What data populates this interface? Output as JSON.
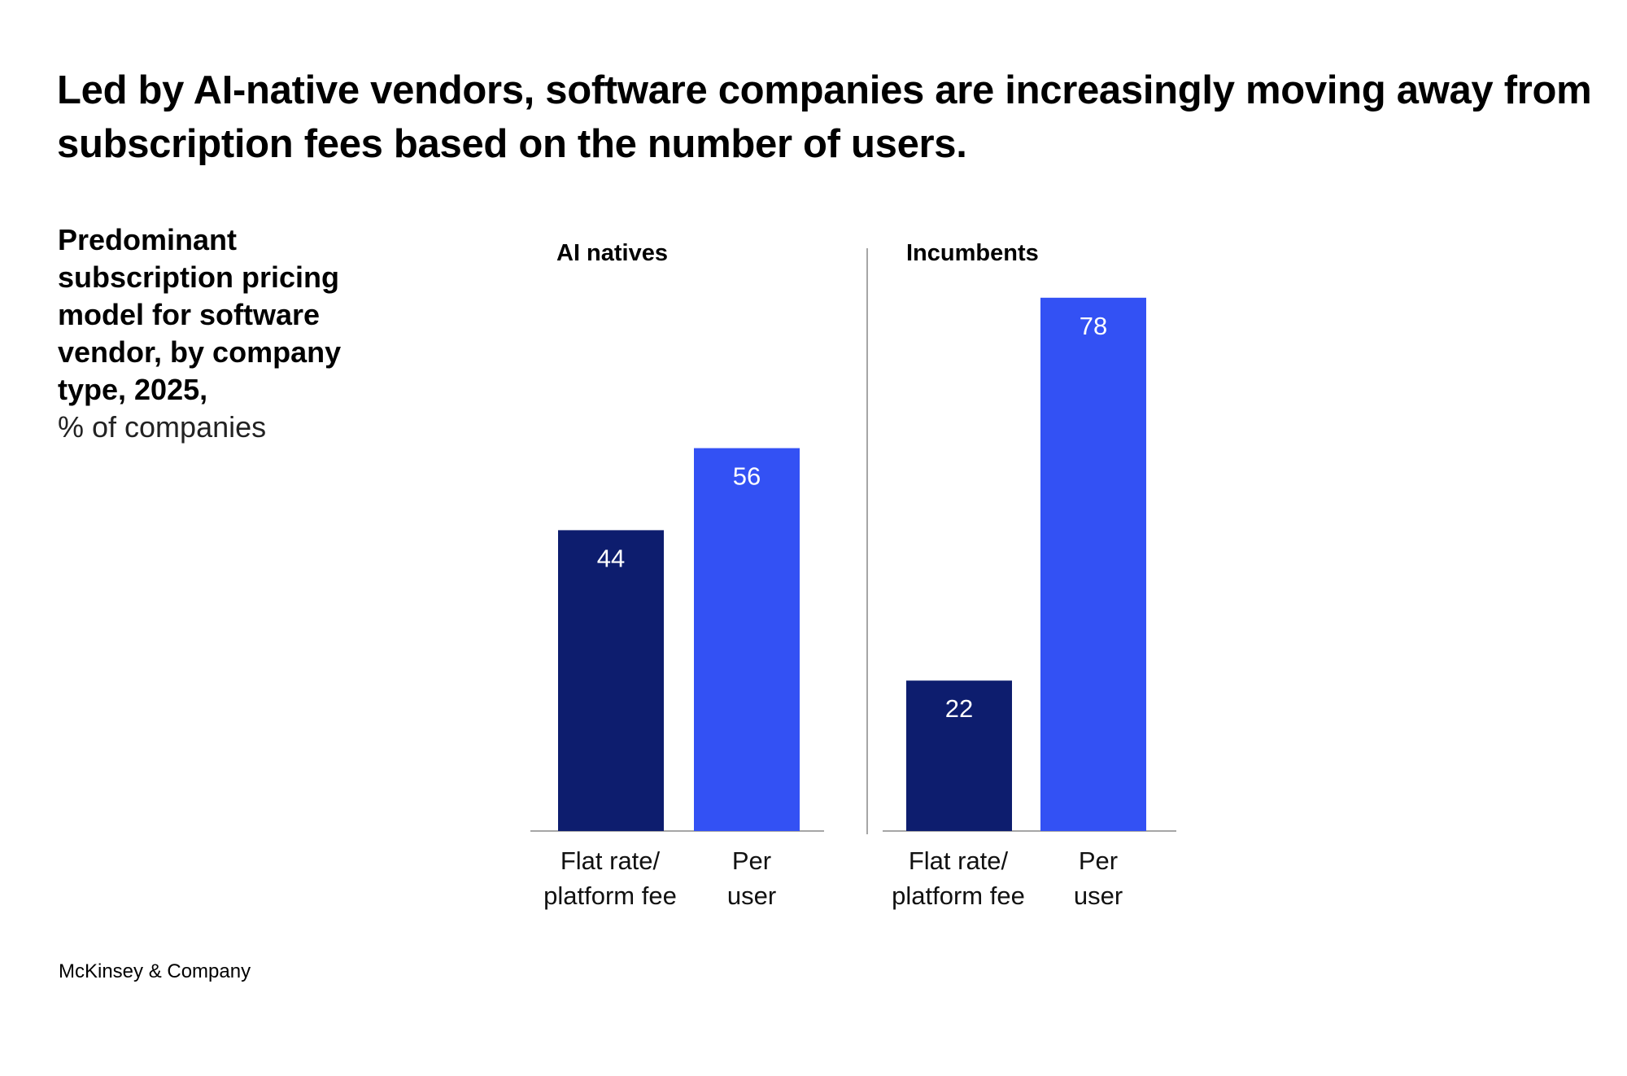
{
  "title": "Led by AI-native vendors, software companies are increasingly moving away from subscription fees based on the number of users.",
  "subtitle": {
    "bold": "Predominant subscription pricing model for software vendor, by company type, 2025,",
    "unit": "% of companies"
  },
  "footer": "McKinsey & Company",
  "colors": {
    "flat_rate": "#0D1D6E",
    "per_user": "#3351F4",
    "axis": "#A6A6A6"
  },
  "chart_data": {
    "type": "bar",
    "title": "Predominant subscription pricing model for software vendor, by company type, 2025",
    "ylabel": "% of companies",
    "xlabel": "",
    "ylim": [
      0,
      100
    ],
    "grid": false,
    "groups": [
      {
        "name": "AI natives",
        "categories": [
          "Flat rate/ platform fee",
          "Per user"
        ],
        "category_lines": [
          [
            "Flat rate/",
            "platform fee"
          ],
          [
            "Per",
            "user"
          ]
        ],
        "values": [
          44,
          56
        ]
      },
      {
        "name": "Incumbents",
        "categories": [
          "Flat rate/ platform fee",
          "Per user"
        ],
        "category_lines": [
          [
            "Flat rate/",
            "platform fee"
          ],
          [
            "Per",
            "user"
          ]
        ],
        "values": [
          22,
          78
        ]
      }
    ]
  }
}
